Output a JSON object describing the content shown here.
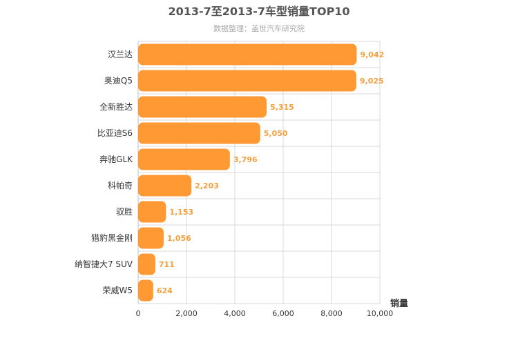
{
  "chart_data": {
    "type": "bar",
    "orientation": "horizontal",
    "title": "2013-7至2013-7车型销量TOP10",
    "subtitle": "数据整理：盖世汽车研究院",
    "xlabel": "销量",
    "ylabel": "",
    "categories": [
      "汉兰达",
      "奥迪Q5",
      "全新胜达",
      "比亚迪S6",
      "奔驰GLK",
      "科帕奇",
      "驭胜",
      "猎豹黑金刚",
      "纳智捷大7 SUV",
      "荣威W5"
    ],
    "values": [
      9042,
      9025,
      5315,
      5050,
      3796,
      2203,
      1153,
      1056,
      711,
      624
    ],
    "value_labels": [
      "9,042",
      "9,025",
      "5,315",
      "5,050",
      "3,796",
      "2,203",
      "1,153",
      "1,056",
      "711",
      "624"
    ],
    "xlim": [
      0,
      10000
    ],
    "ticks": [
      0,
      2000,
      4000,
      6000,
      8000,
      10000
    ],
    "tick_labels": [
      "0",
      "2,000",
      "4,000",
      "6,000",
      "8,000",
      "10,000"
    ],
    "grid": true,
    "legend": "none",
    "colors": {
      "bar": "#ff9933",
      "data_label": "#f0a040"
    }
  }
}
